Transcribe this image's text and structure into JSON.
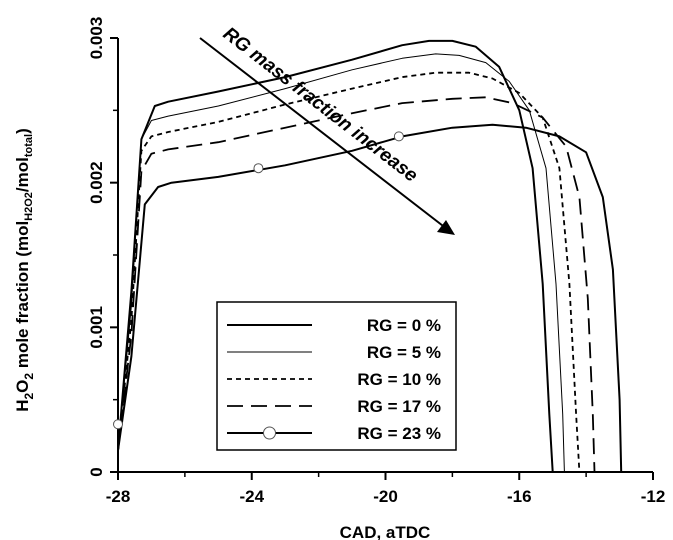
{
  "chart_data": {
    "type": "line",
    "xlabel": "CAD, aTDC",
    "ylabel": {
      "p1": "H",
      "s1": "2",
      "p2": "O",
      "s2": "2",
      "p3": " mole fraction (mol",
      "s3": "H2O2",
      "p4": "/mol",
      "s4": "total",
      "p5": ")"
    },
    "xlim": [
      -28,
      -12
    ],
    "ylim": [
      0,
      0.003
    ],
    "x_ticks": [
      -28,
      -24,
      -20,
      -16,
      -12
    ],
    "x_tick_labels": [
      "-28",
      "-24",
      "-20",
      "-16",
      "-12"
    ],
    "y_ticks": [
      0,
      0.001,
      0.002,
      0.003
    ],
    "y_tick_labels": [
      "0",
      "0.001",
      "0.002",
      "0.003"
    ],
    "grid": false,
    "legend_position": "bottom-center",
    "annotation": "RG mass fraction increase",
    "series": [
      {
        "name": "RG = 0 %",
        "style": "solid-thick",
        "x": [
          -28.0,
          -27.6,
          -27.3,
          -26.9,
          -26.5,
          -25.0,
          -23.0,
          -21.0,
          -19.5,
          -18.7,
          -18.0,
          -17.3,
          -16.6,
          -16.0,
          -15.6,
          -15.3,
          -15.1,
          -15.0
        ],
        "y": [
          0.00015,
          0.00125,
          0.0023,
          0.00253,
          0.00256,
          0.00263,
          0.00273,
          0.00285,
          0.00295,
          0.00298,
          0.00298,
          0.00294,
          0.0028,
          0.0025,
          0.0021,
          0.0013,
          0.0004,
          0.0
        ]
      },
      {
        "name": "RG = 5 %",
        "style": "solid-thin",
        "x": [
          -28.0,
          -27.6,
          -27.3,
          -27.0,
          -26.5,
          -25.0,
          -23.0,
          -21.0,
          -19.5,
          -18.5,
          -17.8,
          -17.0,
          -16.3,
          -15.7,
          -15.2,
          -14.9,
          -14.7,
          -14.65
        ],
        "y": [
          0.00015,
          0.00115,
          0.0023,
          0.00243,
          0.00246,
          0.00253,
          0.00265,
          0.00278,
          0.00286,
          0.00289,
          0.00288,
          0.00283,
          0.0027,
          0.0025,
          0.0021,
          0.0013,
          0.0004,
          0.0
        ]
      },
      {
        "name": "RG = 10 %",
        "style": "short-dash",
        "x": [
          -28.0,
          -27.6,
          -27.3,
          -27.0,
          -26.5,
          -25.0,
          -23.0,
          -21.0,
          -19.5,
          -18.5,
          -17.5,
          -16.8,
          -16.0,
          -15.3,
          -14.8,
          -14.5,
          -14.3,
          -14.2
        ],
        "y": [
          0.00015,
          0.00105,
          0.00222,
          0.00232,
          0.00235,
          0.00242,
          0.00254,
          0.00265,
          0.00273,
          0.00276,
          0.00276,
          0.00272,
          0.00262,
          0.00245,
          0.0021,
          0.0013,
          0.0004,
          0.0
        ]
      },
      {
        "name": "RG = 17 %",
        "style": "long-dash",
        "x": [
          -28.0,
          -27.6,
          -27.3,
          -27.0,
          -26.5,
          -25.0,
          -23.0,
          -21.0,
          -19.5,
          -18.0,
          -17.0,
          -16.2,
          -15.3,
          -14.6,
          -14.2,
          -13.95,
          -13.8,
          -13.75
        ],
        "y": [
          0.00015,
          0.00095,
          0.00208,
          0.0022,
          0.00223,
          0.00228,
          0.00238,
          0.00248,
          0.00255,
          0.00258,
          0.00259,
          0.00255,
          0.00245,
          0.00225,
          0.0019,
          0.0012,
          0.0004,
          0.0
        ]
      },
      {
        "name": "RG = 23 %",
        "style": "solid-circle",
        "x": [
          -28.0,
          -27.6,
          -27.2,
          -26.8,
          -26.4,
          -25.0,
          -23.0,
          -21.0,
          -19.5,
          -18.0,
          -16.8,
          -15.8,
          -14.8,
          -14.0,
          -13.5,
          -13.2,
          -13.0,
          -12.95
        ],
        "y": [
          0.00015,
          0.0008,
          0.00185,
          0.00197,
          0.002,
          0.00204,
          0.00212,
          0.00222,
          0.00232,
          0.00238,
          0.0024,
          0.00238,
          0.00232,
          0.00221,
          0.0019,
          0.0014,
          0.0005,
          0.0
        ],
        "markers": {
          "x": [
            -28.0,
            -23.8,
            -19.6
          ],
          "y": [
            0.00033,
            0.0021,
            0.00232
          ]
        }
      }
    ]
  }
}
